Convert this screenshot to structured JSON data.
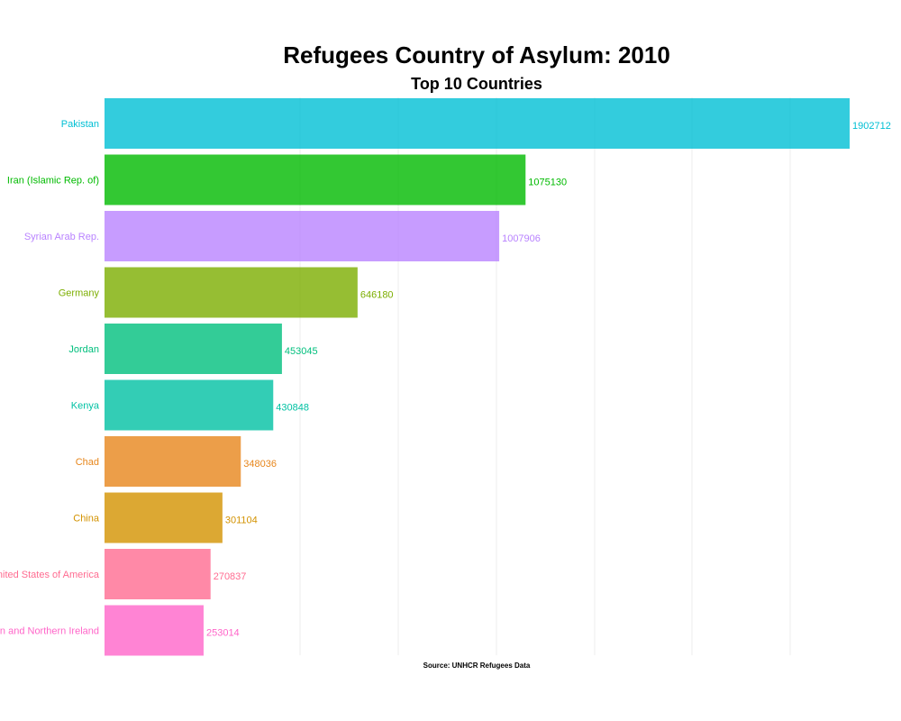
{
  "chart_data": {
    "type": "bar",
    "orientation": "horizontal",
    "title": "Refugees Country of Asylum: 2010",
    "subtitle": "Top 10 Countries",
    "caption": "Source: UNHCR Refugees Data",
    "categories": [
      "Pakistan",
      "Iran (Islamic Rep. of)",
      "Syrian Arab Rep.",
      "Germany",
      "Jordan",
      "Kenya",
      "Chad",
      "China",
      "United States of America",
      "United Kingdom of Great Britain and Northern Ireland"
    ],
    "values": [
      1902712,
      1075130,
      1007906,
      646180,
      453045,
      430848,
      348036,
      301104,
      270837,
      253014
    ],
    "value_labels": [
      "1902712",
      "1075130",
      "1007906",
      "646180",
      "453045",
      "430848",
      "348036",
      "301104",
      "270837",
      "253014"
    ],
    "colors": [
      "#00BFD4",
      "#00BA00",
      "#B983FF",
      "#7CAE00",
      "#00BF7D",
      "#00C1A3",
      "#E7861B",
      "#D39200",
      "#FF6C91",
      "#FF65C9"
    ],
    "xlim": [
      0,
      1902712
    ],
    "grid": true,
    "legend": "none"
  }
}
